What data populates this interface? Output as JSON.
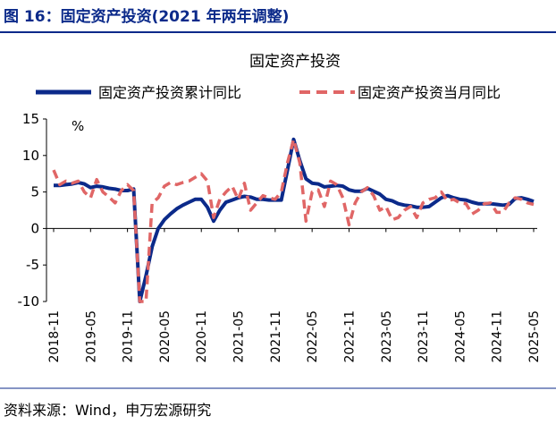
{
  "header": "图 16：固定资产投资(2021 年两年调整)",
  "source": "资料来源：Wind，申万宏源研究",
  "chart_data": {
    "type": "line",
    "title": "固定资产投资",
    "y_label": "%",
    "categories": [
      "2018-11",
      null,
      null,
      null,
      null,
      null,
      "2019-05",
      null,
      null,
      null,
      null,
      null,
      "2019-11",
      null,
      null,
      null,
      null,
      null,
      "2020-05",
      null,
      null,
      null,
      null,
      null,
      "2020-11",
      null,
      null,
      null,
      null,
      null,
      "2021-05",
      null,
      null,
      null,
      null,
      null,
      "2021-11",
      null,
      null,
      null,
      null,
      null,
      "2022-05",
      null,
      null,
      null,
      null,
      null,
      "2022-11",
      null,
      null,
      null,
      null,
      null,
      "2023-05",
      null,
      null,
      null,
      null,
      null,
      "2023-11",
      null,
      null,
      null,
      null,
      null,
      "2024-05",
      null,
      null,
      null,
      null,
      null,
      "2024-11",
      null,
      null,
      null,
      null,
      null,
      "2025-05"
    ],
    "series": [
      {
        "name": "固定资产投资累计同比",
        "color": "#0b2a8a",
        "style": "solid",
        "values": [
          5.9,
          5.9,
          6.0,
          6.1,
          6.3,
          6.1,
          5.6,
          5.8,
          5.7,
          5.5,
          5.4,
          5.2,
          5.2,
          5.4,
          -10,
          -6.5,
          -2.5,
          0,
          1.2,
          2.0,
          2.7,
          3.2,
          3.6,
          4.0,
          4.0,
          2.9,
          1.0,
          2.5,
          3.6,
          3.9,
          4.2,
          4.4,
          4.3,
          4.0,
          4.0,
          3.9,
          3.9,
          3.9,
          8,
          12.2,
          9.3,
          6.8,
          6.2,
          6.1,
          5.7,
          5.8,
          5.9,
          5.8,
          5.3,
          5.1,
          5.1,
          5.5,
          5.1,
          4.7,
          4.0,
          3.8,
          3.4,
          3.2,
          3.1,
          2.9,
          2.9,
          3.0,
          3.6,
          4.2,
          4.5,
          4.2,
          4.0,
          3.9,
          3.6,
          3.4,
          3.4,
          3.4,
          3.3,
          3.2,
          3.3,
          4.1,
          4.2,
          4.0,
          3.7
        ]
      },
      {
        "name": "固定资产投资当月同比",
        "color": "#e06666",
        "style": "dashed",
        "values": [
          8.0,
          6.0,
          6.5,
          6.2,
          6.5,
          5.0,
          4.2,
          6.7,
          5.0,
          4.3,
          3.5,
          5.2,
          6.0,
          5.2,
          -10,
          -10,
          3.5,
          4.2,
          5.8,
          6.3,
          6.0,
          6.3,
          6.5,
          7.0,
          7.5,
          6.5,
          1.5,
          4.0,
          5.0,
          5.8,
          4.0,
          6.2,
          2.5,
          3.5,
          4.5,
          4.2,
          4.0,
          5.0,
          9.0,
          12.2,
          9.0,
          1.0,
          5.0,
          5.3,
          3.0,
          6.5,
          6.0,
          4.2,
          0.5,
          3.5,
          5.0,
          5.6,
          4.5,
          2.5,
          3.0,
          1.2,
          1.5,
          2.5,
          3.0,
          1.5,
          3.5,
          4.0,
          4.2,
          5.0,
          3.8,
          4.0,
          3.5,
          3.4,
          2.0,
          2.5,
          3.4,
          3.5,
          2.2,
          2.2,
          3.5,
          4.2,
          4.0,
          3.5,
          3.3
        ]
      }
    ],
    "ylim": [
      -10,
      15
    ],
    "yticks": [
      15,
      10,
      5,
      0,
      -5,
      -10
    ],
    "grid": false,
    "legend": "top"
  }
}
